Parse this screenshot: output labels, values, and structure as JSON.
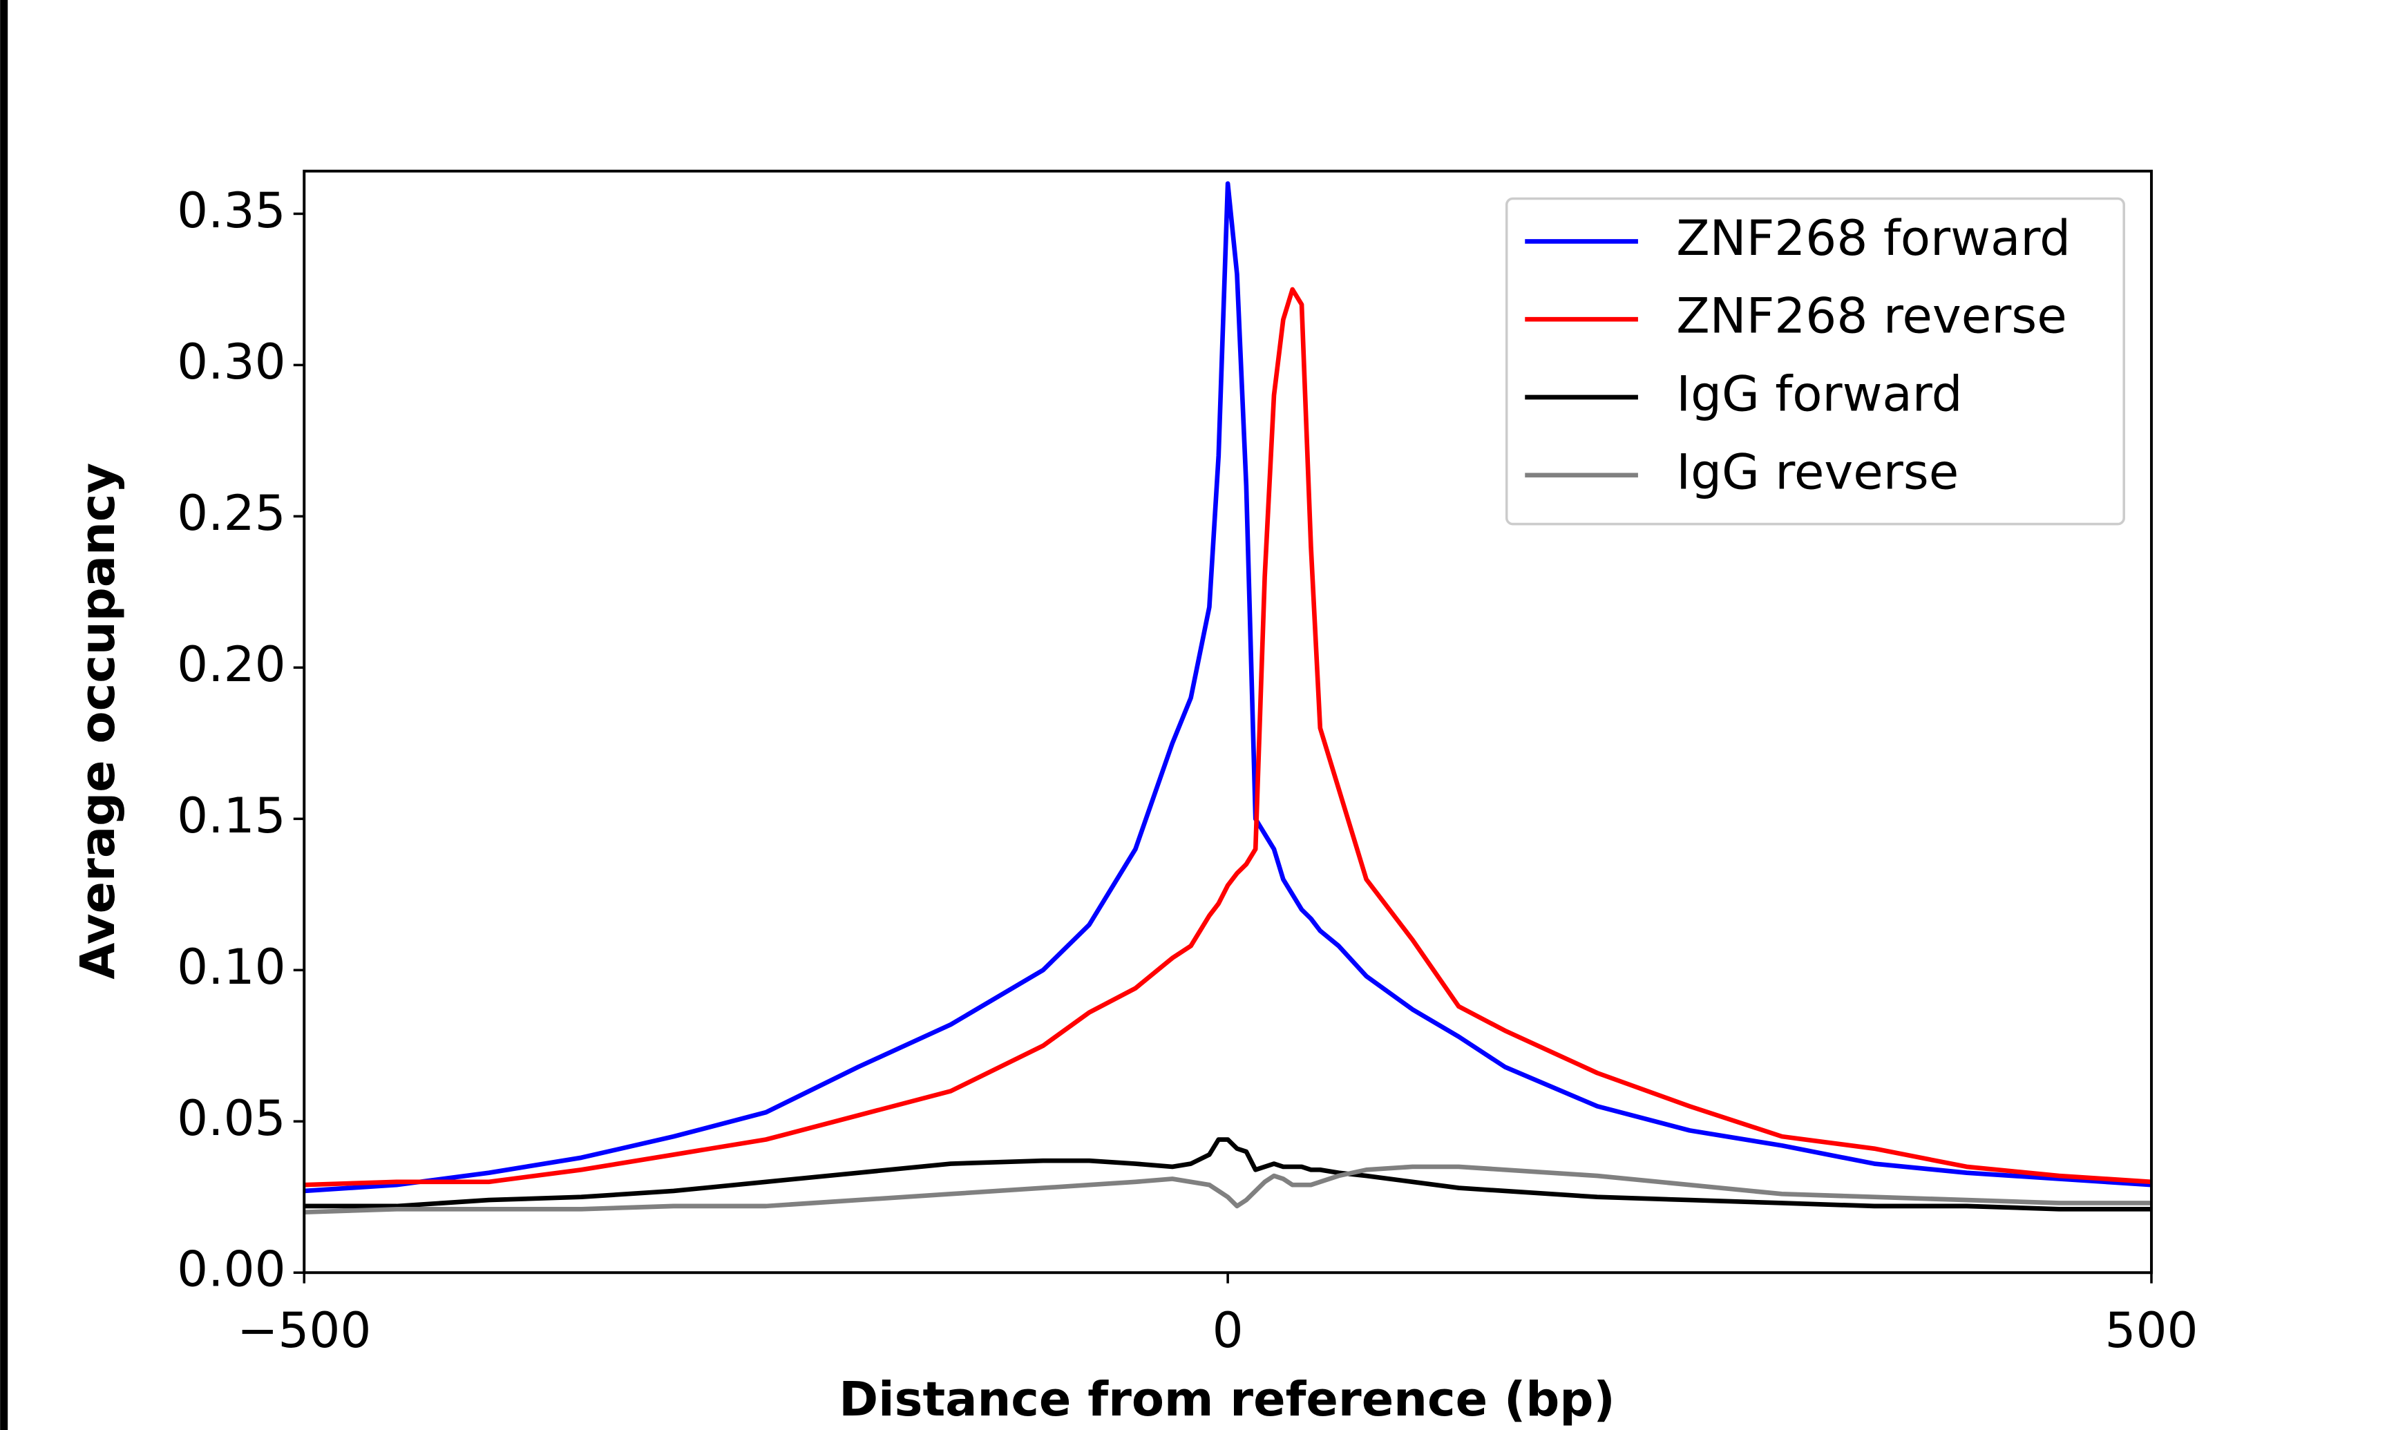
{
  "chart_data": {
    "type": "line",
    "xlabel": "Distance from reference (bp)",
    "ylabel": "Average occupancy",
    "x": [
      -500,
      -450,
      -400,
      -350,
      -300,
      -250,
      -200,
      -150,
      -100,
      -75,
      -50,
      -30,
      -20,
      -10,
      -5,
      0,
      5,
      10,
      15,
      20,
      25,
      30,
      35,
      40,
      45,
      50,
      60,
      75,
      100,
      125,
      150,
      200,
      250,
      300,
      350,
      400,
      450,
      500
    ],
    "series": [
      {
        "name": "ZNF268 forward",
        "color": "#0000ff",
        "values": [
          0.027,
          0.029,
          0.033,
          0.038,
          0.045,
          0.053,
          0.068,
          0.082,
          0.1,
          0.115,
          0.14,
          0.175,
          0.19,
          0.22,
          0.27,
          0.36,
          0.33,
          0.26,
          0.15,
          0.145,
          0.14,
          0.13,
          0.125,
          0.12,
          0.117,
          0.113,
          0.108,
          0.098,
          0.087,
          0.078,
          0.068,
          0.055,
          0.047,
          0.042,
          0.036,
          0.033,
          0.031,
          0.029
        ]
      },
      {
        "name": "ZNF268 reverse",
        "color": "#ff0000",
        "values": [
          0.029,
          0.03,
          0.03,
          0.034,
          0.039,
          0.044,
          0.052,
          0.06,
          0.075,
          0.086,
          0.094,
          0.104,
          0.108,
          0.118,
          0.122,
          0.128,
          0.132,
          0.135,
          0.14,
          0.23,
          0.29,
          0.315,
          0.325,
          0.32,
          0.24,
          0.18,
          0.16,
          0.13,
          0.11,
          0.088,
          0.08,
          0.066,
          0.055,
          0.045,
          0.041,
          0.035,
          0.032,
          0.03
        ]
      },
      {
        "name": "IgG forward",
        "color": "#000000",
        "values": [
          0.022,
          0.022,
          0.024,
          0.025,
          0.027,
          0.03,
          0.033,
          0.036,
          0.037,
          0.037,
          0.036,
          0.035,
          0.036,
          0.039,
          0.044,
          0.044,
          0.041,
          0.04,
          0.034,
          0.035,
          0.036,
          0.035,
          0.035,
          0.035,
          0.034,
          0.034,
          0.033,
          0.032,
          0.03,
          0.028,
          0.027,
          0.025,
          0.024,
          0.023,
          0.022,
          0.022,
          0.021,
          0.021
        ]
      },
      {
        "name": "IgG reverse",
        "color": "#808080",
        "values": [
          0.02,
          0.021,
          0.021,
          0.021,
          0.022,
          0.022,
          0.024,
          0.026,
          0.028,
          0.029,
          0.03,
          0.031,
          0.03,
          0.029,
          0.027,
          0.025,
          0.022,
          0.024,
          0.027,
          0.03,
          0.032,
          0.031,
          0.029,
          0.029,
          0.029,
          0.03,
          0.032,
          0.034,
          0.035,
          0.035,
          0.034,
          0.032,
          0.029,
          0.026,
          0.025,
          0.024,
          0.023,
          0.023
        ]
      }
    ],
    "xlim": [
      -500,
      500
    ],
    "xticks": [
      {
        "value": -500,
        "label": "−500"
      },
      0,
      500
    ],
    "ylim": [
      0,
      0.3641
    ],
    "yticks": [
      {
        "value": 0,
        "label": "0.00"
      },
      {
        "value": 0.05,
        "label": "0.05"
      },
      {
        "value": 0.1,
        "label": "0.10"
      },
      {
        "value": 0.15,
        "label": "0.15"
      },
      {
        "value": 0.2,
        "label": "0.20"
      },
      {
        "value": 0.25,
        "label": "0.25"
      },
      {
        "value": 0.3,
        "label": "0.30"
      },
      {
        "value": 0.35,
        "label": "0.35"
      }
    ],
    "legend": "upper right"
  }
}
